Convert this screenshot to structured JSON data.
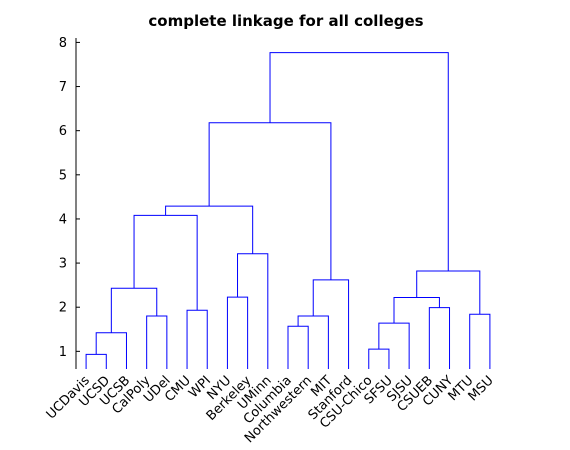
{
  "chart_data": {
    "type": "dendrogram",
    "title": "complete linkage for all colleges",
    "xlabel": "",
    "ylabel": "",
    "ylim": [
      0.6,
      8.1
    ],
    "yticks": [
      1,
      2,
      3,
      4,
      5,
      6,
      7,
      8
    ],
    "colors": {
      "links": "#0000ff",
      "axis": "#000000",
      "background": "#ffffff"
    },
    "grid": false,
    "leaves": [
      "UCDavis",
      "UCSD",
      "UCSB",
      "CalPoly",
      "UDel",
      "CMU",
      "WPI",
      "NYU",
      "Berkeley",
      "UMinn",
      "Columbia",
      "Northwestern",
      "MIT",
      "Stanford",
      "CSU-Chico",
      "SFSU",
      "SJSU",
      "CSUEB",
      "CUNY",
      "MTU",
      "MSU"
    ],
    "merges": [
      {
        "id": "c1",
        "left": "UCDavis",
        "right": "UCSD",
        "height": 0.93
      },
      {
        "id": "c2",
        "left": "c1",
        "right": "UCSB",
        "height": 1.42
      },
      {
        "id": "c3",
        "left": "CalPoly",
        "right": "UDel",
        "height": 1.8
      },
      {
        "id": "c4",
        "left": "c2",
        "right": "c3",
        "height": 2.43
      },
      {
        "id": "c5",
        "left": "CMU",
        "right": "WPI",
        "height": 1.93
      },
      {
        "id": "c6",
        "left": "c4",
        "right": "c5",
        "height": 4.08
      },
      {
        "id": "c7",
        "left": "NYU",
        "right": "Berkeley",
        "height": 2.23
      },
      {
        "id": "c8",
        "left": "c7",
        "right": "UMinn",
        "height": 3.21
      },
      {
        "id": "c9",
        "left": "c6",
        "right": "c8",
        "height": 4.29
      },
      {
        "id": "c10",
        "left": "Columbia",
        "right": "Northwestern",
        "height": 1.57
      },
      {
        "id": "c11",
        "left": "c10",
        "right": "MIT",
        "height": 1.8
      },
      {
        "id": "c12",
        "left": "c11",
        "right": "Stanford",
        "height": 2.62
      },
      {
        "id": "c13",
        "left": "c9",
        "right": "c12",
        "height": 6.18
      },
      {
        "id": "c14",
        "left": "CSU-Chico",
        "right": "SFSU",
        "height": 1.05
      },
      {
        "id": "c15",
        "left": "c14",
        "right": "SJSU",
        "height": 1.64
      },
      {
        "id": "c16",
        "left": "CSUEB",
        "right": "CUNY",
        "height": 1.99
      },
      {
        "id": "c17",
        "left": "c15",
        "right": "c16",
        "height": 2.22
      },
      {
        "id": "c18",
        "left": "MTU",
        "right": "MSU",
        "height": 1.84
      },
      {
        "id": "c19",
        "left": "c17",
        "right": "c18",
        "height": 2.82
      },
      {
        "id": "c20",
        "left": "c13",
        "right": "c19",
        "height": 7.77
      }
    ]
  }
}
